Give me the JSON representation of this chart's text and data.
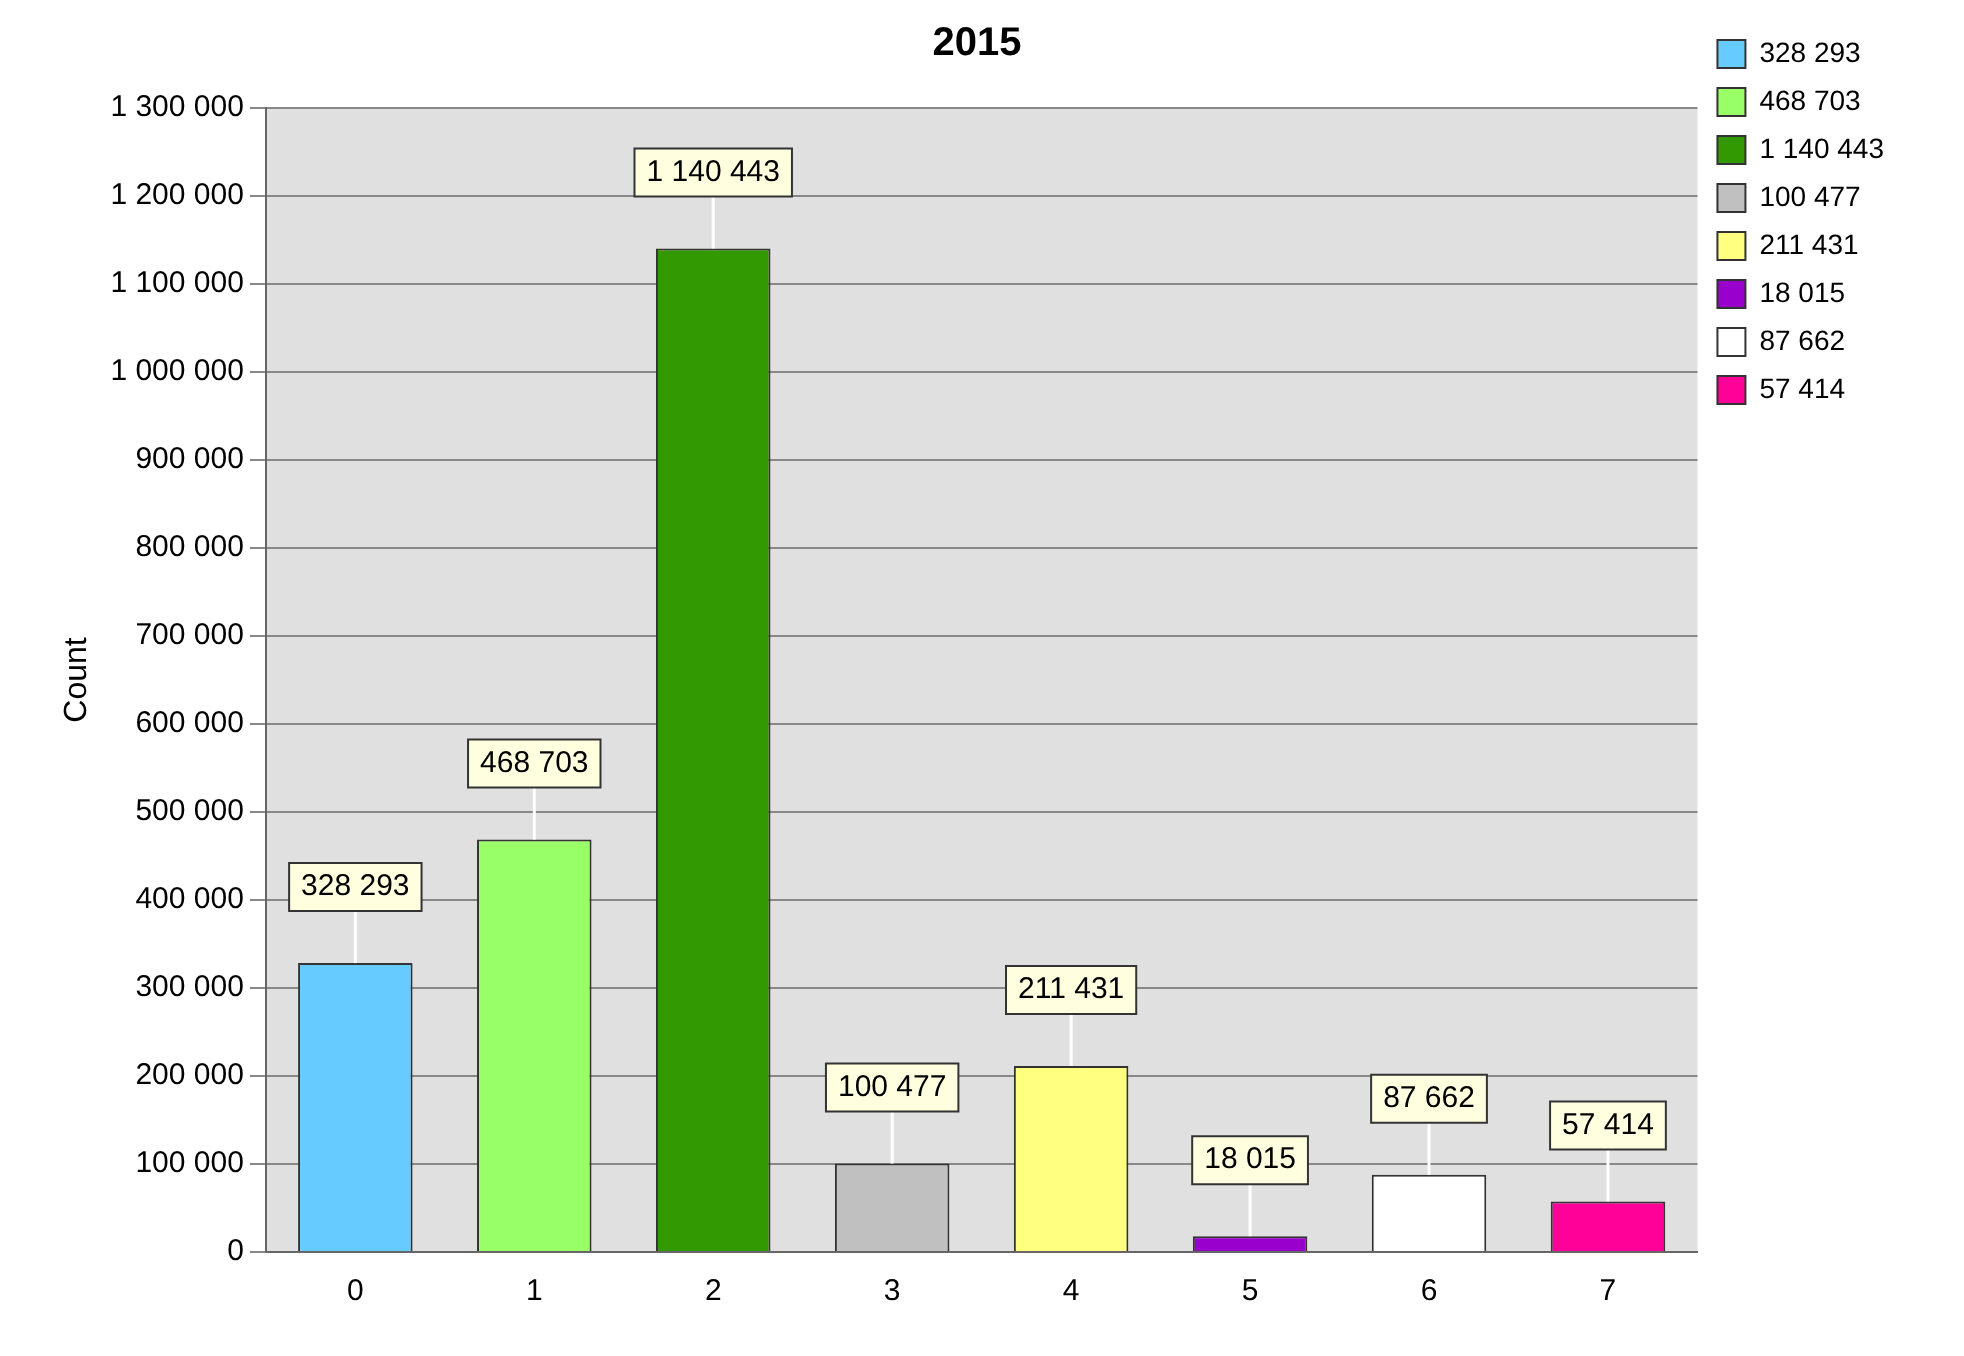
{
  "chart_data": {
    "type": "bar",
    "title": "2015",
    "ylabel": "Count",
    "stacked": true,
    "categories": [
      "0",
      "1",
      "2",
      "3",
      "4",
      "5",
      "6",
      "7"
    ],
    "series": [
      {
        "name": "328 293",
        "color": "#66ccff",
        "values": [
          328293,
          null,
          null,
          null,
          null,
          null,
          null,
          null
        ],
        "value_labels": [
          "328 293",
          null,
          null,
          null,
          null,
          null,
          null,
          null
        ]
      },
      {
        "name": "468 703",
        "color": "#99ff66",
        "values": [
          null,
          468703,
          null,
          null,
          null,
          null,
          null,
          null
        ],
        "value_labels": [
          null,
          "468 703",
          null,
          null,
          null,
          null,
          null,
          null
        ]
      },
      {
        "name": "1 140 443",
        "color": "#339900",
        "values": [
          null,
          null,
          1140443,
          null,
          null,
          null,
          null,
          null
        ],
        "value_labels": [
          null,
          null,
          "1 140 443",
          null,
          null,
          null,
          null,
          null
        ]
      },
      {
        "name": "100 477",
        "color": "#c0c0c0",
        "values": [
          null,
          null,
          null,
          100477,
          null,
          null,
          null,
          null
        ],
        "value_labels": [
          null,
          null,
          null,
          "100 477",
          null,
          null,
          null,
          null
        ]
      },
      {
        "name": "211 431",
        "color": "#ffff80",
        "values": [
          null,
          null,
          null,
          null,
          211431,
          null,
          null,
          null
        ],
        "value_labels": [
          null,
          null,
          null,
          null,
          "211 431",
          null,
          null,
          null
        ]
      },
      {
        "name": "18 015",
        "color": "#9900cc",
        "values": [
          null,
          null,
          null,
          null,
          null,
          18015,
          null,
          null
        ],
        "value_labels": [
          null,
          null,
          null,
          null,
          null,
          "18 015",
          null,
          null
        ]
      },
      {
        "name": "87 662",
        "color": "#ffffff",
        "values": [
          null,
          null,
          null,
          null,
          null,
          null,
          87662,
          null
        ],
        "value_labels": [
          null,
          null,
          null,
          null,
          null,
          null,
          "87 662",
          null
        ]
      },
      {
        "name": "57 414",
        "color": "#ff0099",
        "values": [
          null,
          null,
          null,
          null,
          null,
          null,
          null,
          57414
        ],
        "value_labels": [
          null,
          null,
          null,
          null,
          null,
          null,
          null,
          "57 414"
        ]
      }
    ],
    "ylim": [
      0,
      1300000
    ],
    "yticks": [
      {
        "value": 0,
        "label": "0"
      },
      {
        "value": 100000,
        "label": "100 000"
      },
      {
        "value": 200000,
        "label": "200 000"
      },
      {
        "value": 300000,
        "label": "300 000"
      },
      {
        "value": 400000,
        "label": "400 000"
      },
      {
        "value": 500000,
        "label": "500 000"
      },
      {
        "value": 600000,
        "label": "600 000"
      },
      {
        "value": 700000,
        "label": "700 000"
      },
      {
        "value": 800000,
        "label": "800 000"
      },
      {
        "value": 900000,
        "label": "900 000"
      },
      {
        "value": 1000000,
        "label": "1 000 000"
      },
      {
        "value": 1100000,
        "label": "1 100 000"
      },
      {
        "value": 1200000,
        "label": "1 200 000"
      },
      {
        "value": 1300000,
        "label": "1 300 000"
      }
    ],
    "grid": "y",
    "legend": "top right"
  }
}
